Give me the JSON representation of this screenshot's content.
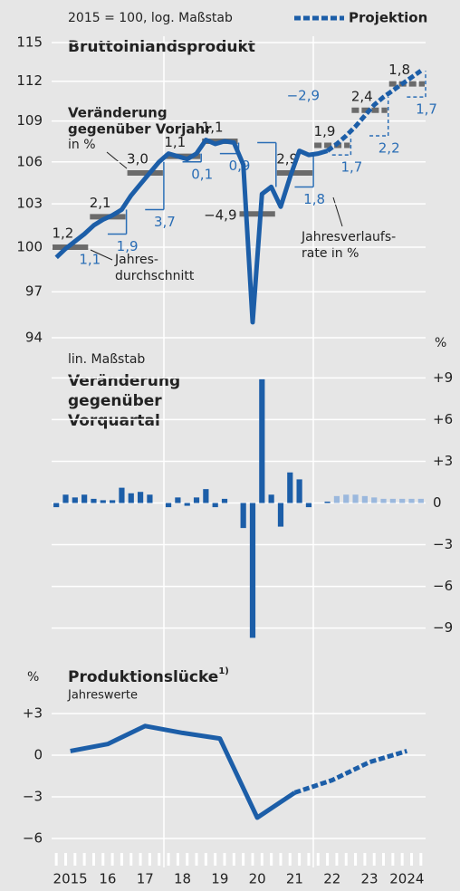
{
  "chart_data": [
    {
      "type": "line",
      "title": "Bruttoinlandsprodukt",
      "subtitle": "2015 = 100, log. Maßstab",
      "log": true,
      "ylim": [
        94,
        115
      ],
      "yticks": [
        94,
        97,
        100,
        103,
        106,
        109,
        112,
        115
      ],
      "grid": true,
      "legend": "top-right",
      "series": [
        {
          "color": "#1c5ea8",
          "values": [
            99.3,
            99.9,
            100.4,
            100.9,
            101.5,
            101.9,
            102.2,
            102.6,
            103.6,
            104.4,
            105.2,
            106.0,
            106.6,
            106.4,
            106.2,
            106.6,
            107.6,
            107.3,
            107.5,
            107.4,
            105.8,
            95.0,
            103.7,
            104.2,
            102.8,
            104.9,
            106.8,
            106.5,
            106.6,
            106.8,
            null,
            null,
            null,
            null,
            null,
            null,
            null,
            null,
            null,
            null
          ]
        },
        {
          "name": "Projektion",
          "color": "#1c5ea8",
          "dashed": true,
          "values": [
            null,
            null,
            null,
            null,
            null,
            null,
            null,
            null,
            null,
            null,
            null,
            null,
            null,
            null,
            null,
            null,
            null,
            null,
            null,
            null,
            null,
            null,
            null,
            null,
            null,
            null,
            null,
            null,
            null,
            106.8,
            107.3,
            107.9,
            108.6,
            109.4,
            110.2,
            110.8,
            111.3,
            111.8,
            112.3,
            112.8
          ]
        }
      ],
      "annual_average": {
        "color": "#6b6b6b",
        "values": [
          100.0,
          102.1,
          105.2,
          106.4,
          107.5,
          102.3,
          105.2,
          107.2,
          109.8,
          111.8
        ],
        "styles": [
          "solid",
          "solid",
          "solid",
          "solid",
          "solid",
          "solid",
          "solid",
          "dashed",
          "dashed",
          "dashed"
        ]
      },
      "annual_rates": {
        "color": "#222222",
        "values": [
          1.2,
          2.1,
          3.0,
          1.1,
          1.1,
          -4.9,
          2.9,
          1.9,
          2.4,
          1.8
        ],
        "value_labels": [
          "1,2",
          "2,1",
          "3,0",
          "1,1",
          "1,1",
          "−4,9",
          "2,9",
          "1,9",
          "2,4",
          "1,8"
        ]
      },
      "q4_rates": {
        "color": "#2a6db5",
        "values": [
          1.1,
          1.9,
          3.7,
          0.1,
          0.9,
          -2.9,
          1.8,
          1.7,
          2.2,
          1.7
        ],
        "value_labels": [
          "1,1",
          "1,9",
          "3,7",
          "0,1",
          "0,9",
          "−2,9",
          "1,8",
          "1,7",
          "2,2",
          "1,7"
        ]
      },
      "annotations": {
        "yoy": [
          "Veränderung",
          "gegenüber Vorjahr",
          "in %"
        ],
        "average": [
          "Jahres-",
          "durchschnitt"
        ],
        "q4": [
          "Jahresverlaufs-",
          "rate in %"
        ]
      }
    },
    {
      "type": "bar",
      "title": [
        "Veränderung",
        "gegenüber",
        "Vorquartal"
      ],
      "subtitle": "lin. Maßstab",
      "unit": "%",
      "ylim": [
        -10,
        10
      ],
      "yticks": [
        {
          "value": 9,
          "label": "+9"
        },
        {
          "value": 6,
          "label": "+6"
        },
        {
          "value": 3,
          "label": "+3"
        },
        0,
        {
          "value": -3,
          "label": "−3"
        },
        {
          "value": -6,
          "label": "−6"
        },
        {
          "value": -9,
          "label": "−9"
        }
      ],
      "grid": true,
      "values": [
        -0.3,
        0.6,
        0.4,
        0.6,
        0.3,
        0.2,
        0.2,
        1.1,
        0.7,
        0.8,
        0.6,
        0.0,
        -0.3,
        0.4,
        -0.2,
        0.4,
        1.0,
        -0.3,
        0.3,
        0.0,
        -1.8,
        -9.7,
        8.9,
        0.6,
        -1.7,
        2.2,
        1.7,
        -0.3,
        0.0,
        0.1,
        0.5,
        0.6,
        0.6,
        0.5,
        0.4,
        0.3,
        0.3,
        0.3,
        0.3,
        0.3
      ],
      "colors": [
        "#1c5ea8",
        "#1c5ea8",
        "#1c5ea8",
        "#1c5ea8",
        "#1c5ea8",
        "#1c5ea8",
        "#1c5ea8",
        "#1c5ea8",
        "#1c5ea8",
        "#1c5ea8",
        "#1c5ea8",
        "#1c5ea8",
        "#1c5ea8",
        "#1c5ea8",
        "#1c5ea8",
        "#1c5ea8",
        "#1c5ea8",
        "#1c5ea8",
        "#1c5ea8",
        "#1c5ea8",
        "#1c5ea8",
        "#1c5ea8",
        "#1c5ea8",
        "#1c5ea8",
        "#1c5ea8",
        "#1c5ea8",
        "#1c5ea8",
        "#1c5ea8",
        "#1c5ea8",
        "#1c5ea8",
        "#9bb8dd",
        "#9bb8dd",
        "#9bb8dd",
        "#9bb8dd",
        "#9bb8dd",
        "#9bb8dd",
        "#9bb8dd",
        "#9bb8dd",
        "#9bb8dd",
        "#9bb8dd"
      ]
    },
    {
      "type": "line",
      "title": "Produktionslücke",
      "title_note": "1)",
      "subtitle": "Jahreswerte",
      "unit": "%",
      "ylim": [
        -6.8,
        3.8
      ],
      "yticks": [
        {
          "value": 3,
          "label": "+3"
        },
        0,
        {
          "value": -3,
          "label": "−3"
        },
        {
          "value": -6,
          "label": "−6"
        }
      ],
      "grid": true,
      "categories": [
        "2015",
        "16",
        "17",
        "18",
        "19",
        "20",
        "21",
        "22",
        "23",
        "2024"
      ],
      "series": [
        {
          "color": "#1c5ea8",
          "values": [
            0.3,
            0.8,
            2.1,
            1.6,
            1.2,
            -4.5,
            -2.7,
            null,
            null,
            null
          ]
        },
        {
          "color": "#1c5ea8",
          "dashed": true,
          "values": [
            null,
            null,
            null,
            null,
            null,
            null,
            -2.7,
            -1.8,
            -0.5,
            0.3
          ]
        }
      ]
    }
  ]
}
